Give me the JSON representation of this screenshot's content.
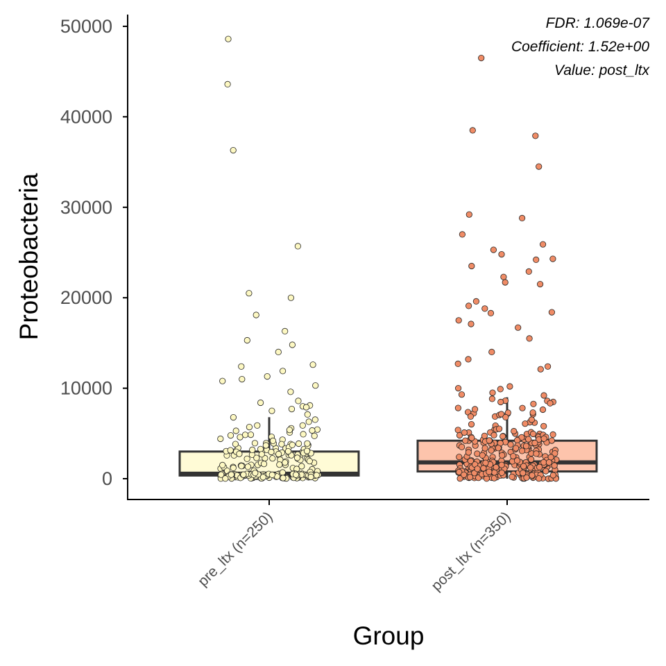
{
  "chart_data": {
    "type": "box",
    "xlabel": "Group",
    "ylabel": "Proteobacteria",
    "ylim": [
      -2300,
      51300
    ],
    "yticks": [
      0,
      10000,
      20000,
      30000,
      40000,
      50000
    ],
    "ytick_labels": [
      "0",
      "10000",
      "20000",
      "30000",
      "40000",
      "50000"
    ],
    "categories": [
      "pre_ltx (n=250)",
      "post_ltx (n=350)"
    ],
    "annotations": [
      "FDR: 1.069e-07",
      "Coefficient: 1.52e+00",
      "Value: post_ltx"
    ],
    "grid": false,
    "legend": "none",
    "colors": {
      "axis": "#000000",
      "box_line": "#333333",
      "point_stroke": "#222222",
      "tick_text": "#4d4d4d"
    },
    "groups": [
      {
        "name": "pre_ltx (n=250)",
        "fill": "#fffbd6",
        "point_fill": "#fdf8c2",
        "n": 250,
        "q1": 350,
        "median": 550,
        "q3": 3000,
        "whisker_low": 0,
        "whisker_high": 6800,
        "outliers": [
          48600,
          43600,
          36300,
          25700,
          20500,
          20000,
          18100,
          16300,
          15300,
          14800,
          14000,
          12600,
          12400,
          11900,
          11300,
          11000,
          10800,
          10300,
          9600,
          8600,
          8400,
          8100,
          8000,
          7900,
          7700,
          7500,
          7100
        ]
      },
      {
        "name": "post_ltx (n=350)",
        "fill": "#fdc4ac",
        "point_fill": "#f08c66",
        "n": 350,
        "q1": 800,
        "median": 1800,
        "q3": 4200,
        "whisker_low": 0,
        "whisker_high": 9000,
        "outliers": [
          46500,
          38500,
          37900,
          34500,
          29200,
          28800,
          27000,
          25900,
          25300,
          24800,
          24300,
          24200,
          23500,
          22900,
          22300,
          21700,
          21500,
          19600,
          19100,
          18800,
          18400,
          18300,
          17500,
          17100,
          16700,
          15500,
          14000,
          13200,
          12700,
          12400,
          12100,
          10200,
          10000,
          9900,
          9500,
          9300,
          9200
        ]
      }
    ]
  }
}
